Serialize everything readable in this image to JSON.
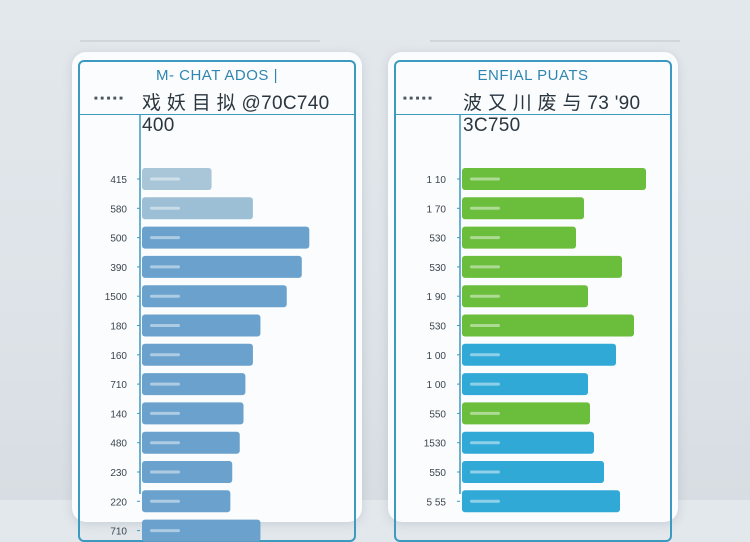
{
  "colors": {
    "blue": "#6aa2cd",
    "cyan": "#31a9d6",
    "green": "#6bbd3c",
    "frame": "#3c9ac0"
  },
  "chart_data": [
    {
      "type": "bar",
      "orientation": "horizontal",
      "title": "M- CHAT ADOS |",
      "total_text": "戏 妖 目 拟 @70C740 400",
      "categories": [
        "415",
        "580",
        "500",
        "390",
        "1500",
        "180",
        "160",
        "710",
        "140",
        "480",
        "230",
        "220",
        "710"
      ],
      "values": [
        37,
        59,
        89,
        85,
        77,
        63,
        59,
        55,
        54,
        52,
        48,
        47,
        63
      ],
      "xlim": [
        0,
        100
      ],
      "bar_colors": [
        "#a9c6d9",
        "#9cbfd6",
        "#6aa2cd",
        "#6aa2cd",
        "#6aa2cd",
        "#6aa2cd",
        "#6aa2cd",
        "#6aa2cd",
        "#6aa2cd",
        "#6aa2cd",
        "#6aa2cd",
        "#6aa2cd",
        "#6aa2cd"
      ]
    },
    {
      "type": "bar",
      "orientation": "horizontal",
      "title": "ENFIAL PUATS",
      "total_text": "波 又 川 废 与 73 '90 3C750",
      "categories": [
        "1 10",
        "1 70",
        "530",
        "530",
        "1 90",
        "530",
        "1 00",
        "1 00",
        "550",
        "1530",
        "550",
        "5 55"
      ],
      "values": [
        92,
        61,
        57,
        80,
        63,
        86,
        77,
        63,
        64,
        66,
        71,
        79
      ],
      "xlim": [
        0,
        100
      ],
      "bar_colors": [
        "#6bbd3c",
        "#6bbd3c",
        "#6bbd3c",
        "#6bbd3c",
        "#6bbd3c",
        "#6bbd3c",
        "#31a9d6",
        "#31a9d6",
        "#6bbd3c",
        "#31a9d6",
        "#31a9d6",
        "#31a9d6"
      ]
    }
  ]
}
